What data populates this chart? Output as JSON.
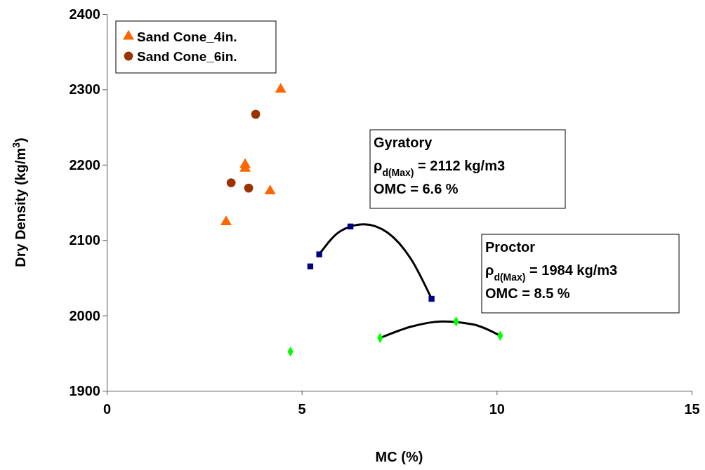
{
  "chart_data": {
    "type": "scatter",
    "xlabel": "MC (%)",
    "ylabel": "Dry Density (kg/m$^{3}$)",
    "xlim": [
      0,
      15
    ],
    "xticks": [
      0,
      5,
      10,
      15
    ],
    "ylim": [
      1900,
      2400
    ],
    "yticks": [
      1900,
      2000,
      2100,
      2200,
      2300,
      2400
    ],
    "grid": false,
    "legend": "top left",
    "series": [
      {
        "name": "Sand Cone_4in.",
        "color": "#ff6600",
        "marker": "triangle",
        "x": [
          4.46,
          3.55,
          3.55,
          4.19,
          3.06
        ],
        "values": [
          2300,
          2200,
          2195,
          2165,
          2124
        ]
      },
      {
        "name": "Sand Cone_6in.",
        "color": "#993300",
        "marker": "circle",
        "x": [
          3.82,
          3.19,
          3.64
        ],
        "values": [
          2267,
          2176,
          2169
        ]
      },
      {
        "color": "#000080",
        "marker": "square",
        "x": [
          5.22,
          5.45,
          6.25,
          8.33
        ],
        "values": [
          2065,
          2081,
          2118,
          2022
        ]
      },
      {
        "color": "#00ff00",
        "marker": "diamond",
        "x": [
          4.71,
          7.01,
          8.96,
          10.09
        ],
        "values": [
          1952,
          1970,
          1992,
          1973
        ]
      },
      {
        "type": "line",
        "color": "#000000",
        "marker": "none",
        "x": [
          5.45,
          6.0,
          6.6,
          7.2,
          7.8,
          8.33
        ],
        "values": [
          2081,
          2112,
          2121,
          2110,
          2075,
          2022
        ]
      },
      {
        "type": "line",
        "color": "#000000",
        "marker": "none",
        "x": [
          7.01,
          7.8,
          8.6,
          9.4,
          10.09
        ],
        "values": [
          1970,
          1985,
          1992,
          1988,
          1973
        ]
      }
    ],
    "annotations": [
      "Gyratory\nρ$_{d(Max)}$ = 2112 kg/m3\nOMC = 6.6 %",
      "Proctor\nρ$_{d(Max)}$ = 1984 kg/m3\nOMC = 8.5 %"
    ]
  }
}
